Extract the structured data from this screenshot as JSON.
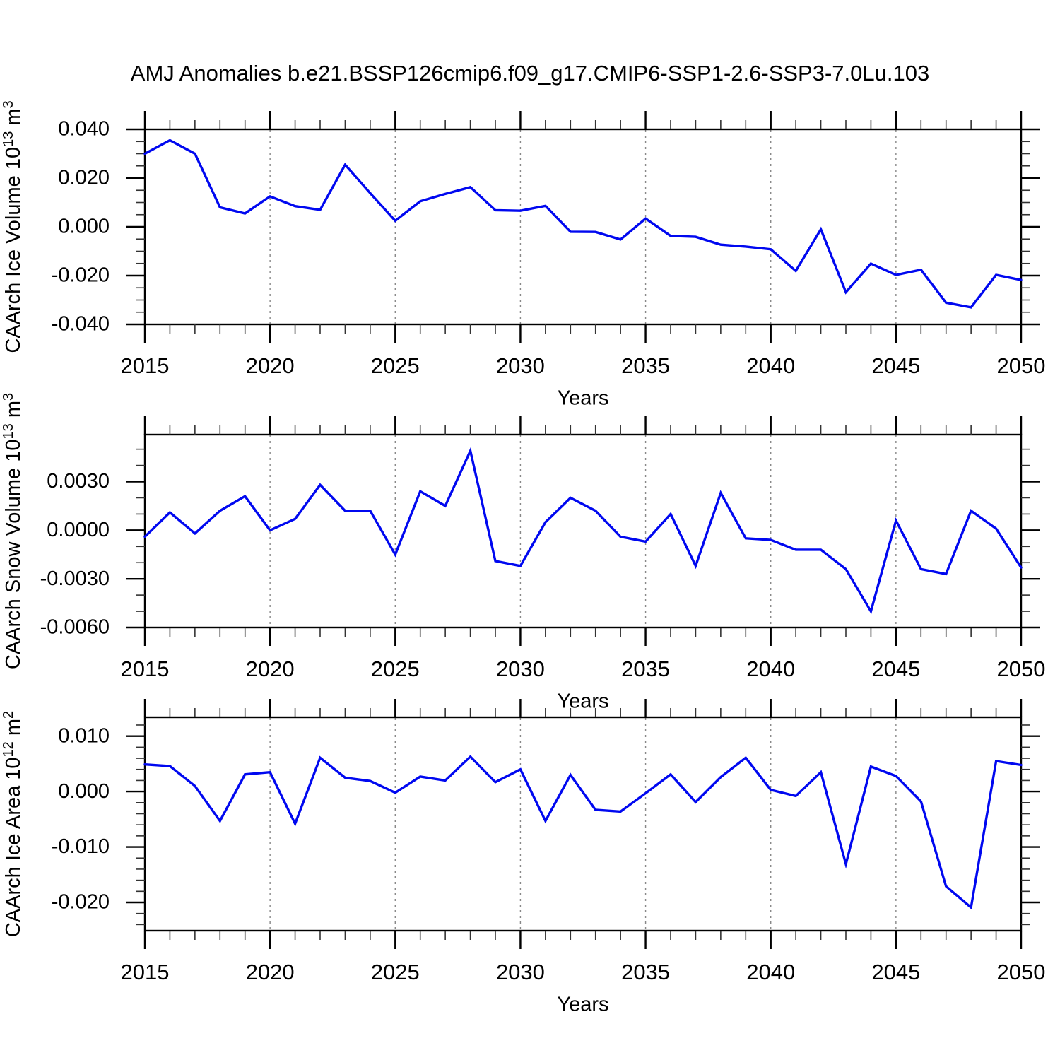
{
  "title": "AMJ Anomalies b.e21.BSSP126cmip6.f09_g17.CMIP6-SSP1-2.6-SSP3-7.0Lu.103",
  "colors": {
    "line": "#0008f0",
    "grid": "#888888",
    "axis": "#000000",
    "minor_tick": "#333333"
  },
  "chart_data": [
    {
      "type": "line",
      "name": "caarch-ice-volume",
      "title": "",
      "ylabel": "CAArch Ice Volume 10^13 m^3",
      "ylabel_parts": [
        {
          "t": "CAArch Ice Volume 10"
        },
        {
          "t": "13",
          "sup": true
        },
        {
          "t": " m"
        },
        {
          "t": "3",
          "sup": true
        }
      ],
      "xlabel": "Years",
      "x": [
        2015,
        2016,
        2017,
        2018,
        2019,
        2020,
        2021,
        2022,
        2023,
        2024,
        2025,
        2026,
        2027,
        2028,
        2029,
        2030,
        2031,
        2032,
        2033,
        2034,
        2035,
        2036,
        2037,
        2038,
        2039,
        2040,
        2041,
        2042,
        2043,
        2044,
        2045,
        2046,
        2047,
        2048,
        2049,
        2050
      ],
      "values": [
        0.03,
        0.0355,
        0.03,
        0.008,
        0.0055,
        0.0125,
        0.0085,
        0.007,
        0.0255,
        0.0138,
        0.0025,
        0.0105,
        0.0135,
        0.0163,
        0.0068,
        0.0066,
        0.0086,
        -0.002,
        -0.0021,
        -0.0052,
        0.0034,
        -0.0037,
        -0.0041,
        -0.0073,
        -0.0081,
        -0.0092,
        -0.0181,
        -0.001,
        -0.0268,
        -0.0151,
        -0.0197,
        -0.0176,
        -0.0311,
        -0.033,
        -0.0197,
        -0.0218
      ],
      "ylim": [
        -0.04,
        0.04
      ],
      "yticks": [
        {
          "v": 0.04,
          "label": "0.040"
        },
        {
          "v": 0.02,
          "label": "0.020"
        },
        {
          "v": 0.0,
          "label": "0.000"
        },
        {
          "v": -0.02,
          "label": "-0.020"
        },
        {
          "v": -0.04,
          "label": "-0.040"
        }
      ],
      "y_minor_step": 0.005,
      "y_major_step": 0.02,
      "xlim": [
        2015,
        2050
      ],
      "xticks_major": [
        2015,
        2020,
        2025,
        2030,
        2035,
        2040,
        2045,
        2050
      ],
      "x_minor_step": 1,
      "grid_x": [
        2020,
        2025,
        2030,
        2035,
        2040,
        2045
      ]
    },
    {
      "type": "line",
      "name": "caarch-snow-volume",
      "title": "",
      "ylabel": "CAArch Snow Volume 10^13 m^3",
      "ylabel_parts": [
        {
          "t": "CAArch Snow Volume 10"
        },
        {
          "t": "13",
          "sup": true
        },
        {
          "t": " m"
        },
        {
          "t": "3",
          "sup": true
        }
      ],
      "xlabel": "Years",
      "x": [
        2015,
        2016,
        2017,
        2018,
        2019,
        2020,
        2021,
        2022,
        2023,
        2024,
        2025,
        2026,
        2027,
        2028,
        2029,
        2030,
        2031,
        2032,
        2033,
        2034,
        2035,
        2036,
        2037,
        2038,
        2039,
        2040,
        2041,
        2042,
        2043,
        2044,
        2045,
        2046,
        2047,
        2048,
        2049,
        2050
      ],
      "values": [
        -0.0004,
        0.0011,
        -0.0002,
        0.0012,
        0.0021,
        0.0,
        0.0007,
        0.0028,
        0.0012,
        0.0012,
        -0.0015,
        0.0024,
        0.0015,
        0.0049,
        -0.0019,
        -0.0022,
        0.0005,
        0.002,
        0.0012,
        -0.0004,
        -0.0007,
        0.001,
        -0.0022,
        0.0023,
        -0.0005,
        -0.0006,
        -0.0012,
        -0.0012,
        -0.0024,
        -0.005,
        0.0006,
        -0.0024,
        -0.0027,
        0.0012,
        0.0001,
        -0.0023
      ],
      "ylim": [
        -0.006,
        0.0059
      ],
      "yticks": [
        {
          "v": 0.003,
          "label": "0.0030"
        },
        {
          "v": 0.0,
          "label": "0.0000"
        },
        {
          "v": -0.003,
          "label": "-0.0030"
        },
        {
          "v": -0.006,
          "label": "-0.0060"
        }
      ],
      "y_minor_step": 0.001,
      "y_major_step": 0.003,
      "xlim": [
        2015,
        2050
      ],
      "xticks_major": [
        2015,
        2020,
        2025,
        2030,
        2035,
        2040,
        2045,
        2050
      ],
      "x_minor_step": 1,
      "grid_x": [
        2020,
        2025,
        2030,
        2035,
        2040,
        2045
      ]
    },
    {
      "type": "line",
      "name": "caarch-ice-area",
      "title": "",
      "ylabel": "CAArch Ice Area 10^12 m^2",
      "ylabel_parts": [
        {
          "t": "CAArch Ice Area 10"
        },
        {
          "t": "12",
          "sup": true
        },
        {
          "t": " m"
        },
        {
          "t": "2",
          "sup": true
        }
      ],
      "xlabel": "Years",
      "x": [
        2015,
        2016,
        2017,
        2018,
        2019,
        2020,
        2021,
        2022,
        2023,
        2024,
        2025,
        2026,
        2027,
        2028,
        2029,
        2030,
        2031,
        2032,
        2033,
        2034,
        2035,
        2036,
        2037,
        2038,
        2039,
        2040,
        2041,
        2042,
        2043,
        2044,
        2045,
        2046,
        2047,
        2048,
        2049,
        2050
      ],
      "values": [
        0.0049,
        0.0046,
        0.001,
        -0.0053,
        0.0031,
        0.0035,
        -0.0058,
        0.0061,
        0.0025,
        0.0019,
        -0.0002,
        0.0027,
        0.002,
        0.0063,
        0.0017,
        0.004,
        -0.0053,
        0.003,
        -0.0033,
        -0.0036,
        -0.0003,
        0.0031,
        -0.0019,
        0.0026,
        0.0061,
        0.0003,
        -0.0008,
        0.0035,
        -0.0131,
        0.0045,
        0.0028,
        -0.0018,
        -0.0171,
        -0.0209,
        0.0055,
        0.0048
      ],
      "ylim": [
        -0.0251,
        0.0134
      ],
      "yticks": [
        {
          "v": 0.01,
          "label": "0.010"
        },
        {
          "v": 0.0,
          "label": "0.000"
        },
        {
          "v": -0.01,
          "label": "-0.010"
        },
        {
          "v": -0.02,
          "label": "-0.020"
        }
      ],
      "y_minor_step": 0.002,
      "y_major_step": 0.01,
      "xlim": [
        2015,
        2050
      ],
      "xticks_major": [
        2015,
        2020,
        2025,
        2030,
        2035,
        2040,
        2045,
        2050
      ],
      "x_minor_step": 1,
      "grid_x": [
        2020,
        2025,
        2030,
        2035,
        2040,
        2045
      ]
    }
  ]
}
